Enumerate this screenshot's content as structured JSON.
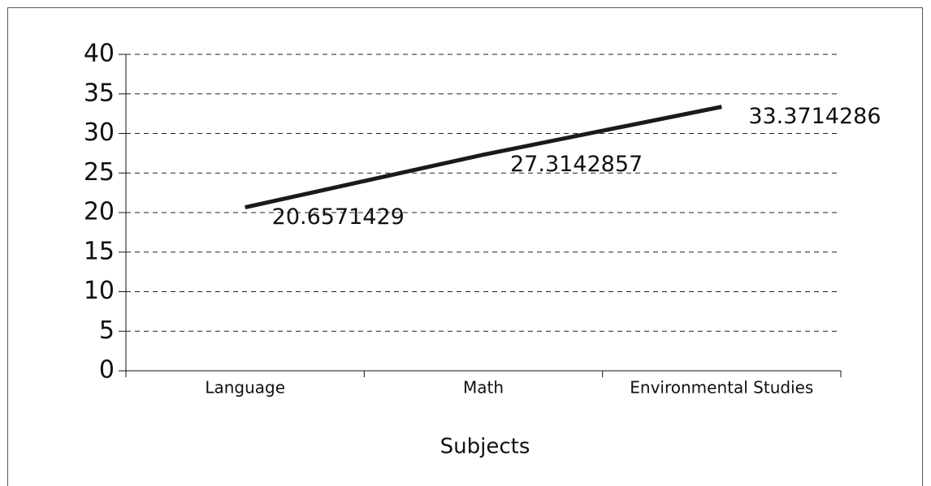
{
  "chart_data": {
    "type": "line",
    "categories": [
      "Language",
      "Math",
      "Environmental Studies"
    ],
    "values": [
      20.6571429,
      27.3142857,
      33.3714286
    ],
    "color": "#1a1a1a",
    "x_label": "Subjects",
    "ylim": [
      0,
      40
    ],
    "yticks": [
      0,
      5,
      10,
      15,
      20,
      25,
      30,
      35,
      40
    ],
    "grid": true
  }
}
